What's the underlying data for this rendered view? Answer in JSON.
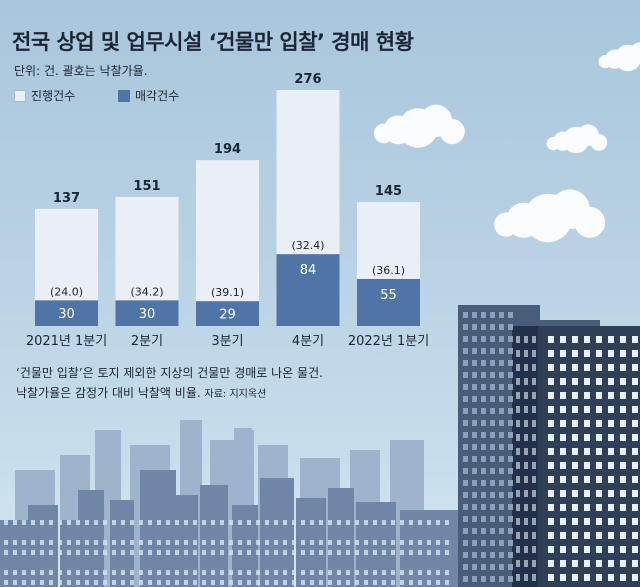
{
  "chart_data": {
    "type": "bar",
    "title": "전국 상업 및 업무시설 ‘건물만 입찰’ 경매 현황",
    "unit_note": "단위: 건. 괄호는 낙찰가율.",
    "categories": [
      "2021년 1분기",
      "2분기",
      "3분기",
      "4분기",
      "2022년 1분기"
    ],
    "series": [
      {
        "name": "진행건수",
        "values": [
          137,
          151,
          194,
          276,
          145
        ],
        "color": "#e9eff5"
      },
      {
        "name": "매각건수",
        "values": [
          30,
          30,
          29,
          84,
          55
        ],
        "color": "#4f74a6"
      }
    ],
    "rate_labels": [
      "(24.0)",
      "(34.2)",
      "(39.1)",
      "(32.4)",
      "(36.1)"
    ],
    "legend_position": "top-left",
    "ylim": [
      0,
      276
    ],
    "grid": false
  },
  "notes": {
    "line1": "‘건물만 입찰’은 토지 제외한 지상의 건물만 경매로 나온 물건.",
    "line2": "낙찰가율은 감정가 대비 낙찰액 비율.",
    "source": "자료: 지지옥션"
  },
  "colors": {
    "sky": "#b7d1e3",
    "building_dark": "#2f3f55",
    "building_mid": "#6f86a6",
    "window": "#e9f0f8"
  }
}
